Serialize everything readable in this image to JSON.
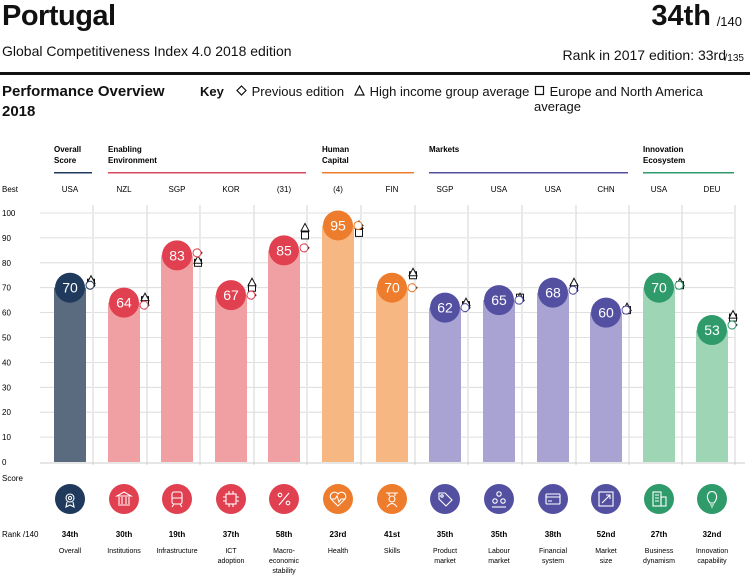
{
  "header": {
    "country": "Portugal",
    "subtitle": "Global Competitiveness Index 4.0 2018 edition",
    "rank": "34th",
    "rank_total": "/140",
    "rank_prev_label": "Rank in 2017 edition: 33rd",
    "rank_prev_total": "/135"
  },
  "section": {
    "title_line1": "Performance Overview",
    "title_line2": "2018"
  },
  "key": {
    "label": "Key",
    "items": [
      "Previous edition",
      "High income group average",
      "Europe and North America average"
    ]
  },
  "left_labels": {
    "best": "Best",
    "score": "Score",
    "rank": "Rank /140"
  },
  "chart_data": {
    "type": "bar",
    "ylim": [
      0,
      100
    ],
    "yticks": [
      0,
      10,
      20,
      30,
      40,
      50,
      60,
      70,
      80,
      90,
      100
    ],
    "groups": [
      {
        "name": "Overall Score",
        "line1": "Overall",
        "line2": "Score",
        "color": "#1f3a5c"
      },
      {
        "name": "Enabling Environment",
        "line1": "Enabling",
        "line2": "Environment",
        "color": "#d84a5c"
      },
      {
        "name": "Human Capital",
        "line1": "Human",
        "line2": "Capital",
        "color": "#ee7c2d"
      },
      {
        "name": "Markets",
        "line1": "Markets",
        "line2": "",
        "color": "#5350a2"
      },
      {
        "name": "Innovation Ecosystem",
        "line1": "Innovation",
        "line2": "Ecosystem",
        "color": "#2f9a6a"
      }
    ],
    "pillars": [
      {
        "name": "Overall",
        "name_line2": "",
        "group": 0,
        "best": "USA",
        "score": 70,
        "rank": "34th",
        "prev": 71,
        "high": 73,
        "europe": 72,
        "bar": "#5a6b80",
        "circle": "#1f3a5c",
        "icon": "gear-icon"
      },
      {
        "name": "Institutions",
        "name_line2": "",
        "group": 1,
        "best": "NZL",
        "score": 64,
        "rank": "30th",
        "prev": 63,
        "high": 66,
        "europe": 65,
        "bar": "#f0a0a2",
        "circle": "#e0404f",
        "icon": "institution-icon"
      },
      {
        "name": "Infrastructure",
        "name_line2": "",
        "group": 1,
        "best": "SGP",
        "score": 83,
        "rank": "19th",
        "prev": 84,
        "high": 81,
        "europe": 80,
        "bar": "#f0a0a2",
        "circle": "#e0404f",
        "icon": "train-icon"
      },
      {
        "name": "ICT",
        "name_line2": "adoption",
        "group": 1,
        "best": "KOR",
        "score": 67,
        "rank": "37th",
        "prev": 67,
        "high": 72,
        "europe": 70,
        "bar": "#f0a0a2",
        "circle": "#e0404f",
        "icon": "chip-icon"
      },
      {
        "name": "Macro-",
        "name_line2": "economic",
        "name_line3": "stability",
        "group": 1,
        "best": "(31)",
        "score": 85,
        "rank": "58th",
        "prev": 86,
        "high": 94,
        "europe": 91,
        "bar": "#f0a0a2",
        "circle": "#e0404f",
        "icon": "percent-icon"
      },
      {
        "name": "Health",
        "name_line2": "",
        "group": 2,
        "best": "(4)",
        "score": 95,
        "rank": "23rd",
        "prev": 95,
        "high": 95,
        "europe": 92,
        "bar": "#f7b783",
        "circle": "#ee7c2d",
        "icon": "heartbeat-icon"
      },
      {
        "name": "Skills",
        "name_line2": "",
        "group": 2,
        "best": "FIN",
        "score": 70,
        "rank": "41st",
        "prev": 70,
        "high": 76,
        "europe": 75,
        "bar": "#f7b783",
        "circle": "#ee7c2d",
        "icon": "skills-icon"
      },
      {
        "name": "Product",
        "name_line2": "market",
        "group": 3,
        "best": "SGP",
        "score": 62,
        "rank": "35th",
        "prev": 62,
        "high": 64,
        "europe": 63,
        "bar": "#a9a3d4",
        "circle": "#5350a2",
        "icon": "tag-icon"
      },
      {
        "name": "Labour",
        "name_line2": "market",
        "group": 3,
        "best": "USA",
        "score": 65,
        "rank": "35th",
        "prev": 65,
        "high": 66,
        "europe": 66,
        "bar": "#a9a3d4",
        "circle": "#5350a2",
        "icon": "people-icon"
      },
      {
        "name": "Financial",
        "name_line2": "system",
        "group": 3,
        "best": "USA",
        "score": 68,
        "rank": "38th",
        "prev": 69,
        "high": 72,
        "europe": 70,
        "bar": "#a9a3d4",
        "circle": "#5350a2",
        "icon": "card-icon"
      },
      {
        "name": "Market",
        "name_line2": "size",
        "group": 3,
        "best": "CHN",
        "score": 60,
        "rank": "52nd",
        "prev": 61,
        "high": 62,
        "europe": 61,
        "bar": "#a9a3d4",
        "circle": "#5350a2",
        "icon": "expand-icon"
      },
      {
        "name": "Business",
        "name_line2": "dynamism",
        "group": 4,
        "best": "USA",
        "score": 70,
        "rank": "27th",
        "prev": 71,
        "high": 72,
        "europe": 71,
        "bar": "#9ed5b4",
        "circle": "#2f9a6a",
        "icon": "building-icon"
      },
      {
        "name": "Innovation",
        "name_line2": "capability",
        "group": 4,
        "best": "DEU",
        "score": 53,
        "rank": "32nd",
        "prev": 55,
        "high": 59,
        "europe": 58,
        "bar": "#9ed5b4",
        "circle": "#2f9a6a",
        "icon": "bulb-icon"
      }
    ]
  }
}
